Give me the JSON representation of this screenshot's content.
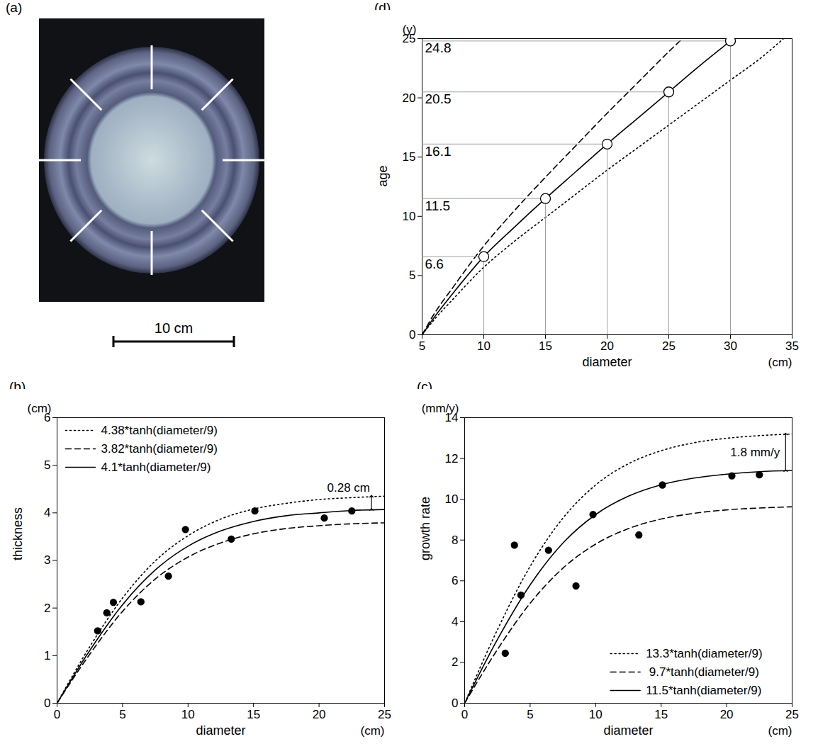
{
  "chart_data": [
    {
      "panel": "(a)",
      "type": "image",
      "scale_bar": "10 cm"
    },
    {
      "panel": "(b)",
      "type": "line",
      "x_label": "diameter",
      "x_unit": "(cm)",
      "y_label": "thickness",
      "y_unit": "(cm)",
      "xlim": [
        0,
        25
      ],
      "xticks": [
        0,
        5,
        10,
        15,
        20,
        25
      ],
      "ylim": [
        0,
        6
      ],
      "yticks": [
        0,
        1,
        2,
        3,
        4,
        5,
        6
      ],
      "legend": "upper left",
      "series": [
        {
          "name": "4.38*tanh(diameter/9)",
          "color": "#000000",
          "line_style": "dotted",
          "x": [
            0,
            2.5,
            5,
            7.5,
            10,
            12.5,
            15,
            17.5,
            20,
            22.5,
            25
          ],
          "values": [
            0,
            1.19,
            2.21,
            2.99,
            3.52,
            3.87,
            4.08,
            4.2,
            4.28,
            4.32,
            4.35
          ]
        },
        {
          "name": "3.82*tanh(diameter/9)",
          "color": "#000000",
          "line_style": "dashed",
          "x": [
            0,
            2.5,
            5,
            7.5,
            10,
            12.5,
            15,
            17.5,
            20,
            22.5,
            25
          ],
          "values": [
            0,
            1.03,
            1.93,
            2.61,
            3.07,
            3.37,
            3.56,
            3.67,
            3.73,
            3.77,
            3.79
          ]
        },
        {
          "name": "4.1*tanh(diameter/9)",
          "color": "#000000",
          "line_style": "solid",
          "x": [
            0,
            2.5,
            5,
            7.5,
            10,
            12.5,
            15,
            17.5,
            20,
            22.5,
            25
          ],
          "values": [
            0,
            1.11,
            2.07,
            2.8,
            3.3,
            3.62,
            3.82,
            3.94,
            4,
            4.05,
            4.07
          ]
        }
      ],
      "points": {
        "type": "scatter",
        "marker": "circle",
        "color": "#000000",
        "x": [
          3.1,
          3.8,
          4.3,
          6.4,
          8.5,
          9.8,
          13.3,
          15.1,
          20.4,
          22.5
        ],
        "values": [
          1.52,
          1.9,
          2.12,
          2.13,
          2.67,
          3.65,
          3.45,
          4.04,
          3.89,
          4.04
        ]
      },
      "annotations": [
        {
          "text": "0.28 cm",
          "x": 24,
          "y_from": 4.07,
          "y_to": 4.35
        }
      ]
    },
    {
      "panel": "(c)",
      "type": "line",
      "x_label": "diameter",
      "x_unit": "(cm)",
      "y_label": "growth rate",
      "y_unit": "(mm/y)",
      "xlim": [
        0,
        25
      ],
      "xticks": [
        0,
        5,
        10,
        15,
        20,
        25
      ],
      "ylim": [
        0,
        14
      ],
      "yticks": [
        0,
        2,
        4,
        6,
        8,
        10,
        12,
        14
      ],
      "legend": "lower right",
      "series": [
        {
          "name": "13.3*tanh(diameter/9)",
          "color": "#000000",
          "line_style": "dotted",
          "x": [
            0,
            2.5,
            5,
            7.5,
            10,
            12.5,
            15,
            17.5,
            20,
            22.5,
            25
          ],
          "values": [
            0,
            3.6,
            6.71,
            9.07,
            10.7,
            11.74,
            12.38,
            12.77,
            12.99,
            13.12,
            13.2
          ]
        },
        {
          "name": " 9.7*tanh(diameter/9)",
          "color": "#000000",
          "line_style": "dashed",
          "x": [
            0,
            2.5,
            5,
            7.5,
            10,
            12.5,
            15,
            17.5,
            20,
            22.5,
            25
          ],
          "values": [
            0,
            2.63,
            4.9,
            6.62,
            7.8,
            8.56,
            9.03,
            9.31,
            9.48,
            9.57,
            9.63
          ]
        },
        {
          "name": "11.5*tanh(diameter/9)",
          "color": "#000000",
          "line_style": "solid",
          "x": [
            0,
            2.5,
            5,
            7.5,
            10,
            12.5,
            15,
            17.5,
            20,
            22.5,
            25
          ],
          "values": [
            0,
            3.12,
            5.8,
            7.85,
            9.25,
            10.15,
            10.71,
            11.04,
            11.23,
            11.35,
            11.41
          ]
        }
      ],
      "points": {
        "type": "scatter",
        "marker": "circle",
        "color": "#000000",
        "x": [
          3.1,
          3.8,
          4.3,
          6.4,
          8.5,
          9.8,
          13.3,
          15.1,
          20.4,
          22.5
        ],
        "values": [
          2.45,
          7.75,
          5.3,
          7.5,
          5.75,
          9.25,
          8.25,
          10.7,
          11.15,
          11.2
        ]
      },
      "annotations": [
        {
          "text": "1.8 mm/y",
          "x": 24.5,
          "y_from": 11.4,
          "y_to": 13.2
        }
      ]
    },
    {
      "panel": "(d)",
      "type": "line",
      "x_label": "diameter",
      "x_unit": "(cm)",
      "y_label": "age",
      "y_unit": "(y)",
      "xlim": [
        5,
        35
      ],
      "xticks": [
        5,
        10,
        15,
        20,
        25,
        30,
        35
      ],
      "ylim": [
        0,
        25
      ],
      "yticks": [
        0,
        5,
        10,
        15,
        20,
        25
      ],
      "series": [
        {
          "color": "#000000",
          "line_style": "dashed",
          "x": [
            5,
            6,
            7.5,
            10,
            12.5,
            15,
            17.5,
            20,
            22.5,
            25,
            26.1
          ],
          "values": [
            0,
            1.8,
            4,
            7.5,
            10.5,
            13.3,
            16,
            18.7,
            21.3,
            23.9,
            25
          ]
        },
        {
          "color": "#000000",
          "line_style": "solid",
          "x": [
            5,
            6,
            7.5,
            10,
            12.5,
            15,
            17.5,
            20,
            22.5,
            25,
            27.5,
            30
          ],
          "values": [
            0,
            1.5,
            3.5,
            6.6,
            9.1,
            11.5,
            13.8,
            16.1,
            18.3,
            20.5,
            22.7,
            24.8
          ]
        },
        {
          "color": "#000000",
          "line_style": "dotted",
          "x": [
            5,
            6,
            7.5,
            10,
            12.5,
            15,
            17.5,
            20,
            22.5,
            25,
            27.5,
            30,
            32.5,
            34.3
          ],
          "values": [
            0,
            1.3,
            3,
            5.7,
            7.9,
            9.9,
            11.9,
            13.9,
            15.8,
            17.7,
            19.6,
            21.5,
            23.4,
            25
          ]
        }
      ],
      "points": {
        "type": "scatter",
        "marker": "open_circle",
        "color": "#000000",
        "data_labels": true,
        "x": [
          10,
          15,
          20,
          25,
          30
        ],
        "values": [
          6.6,
          11.5,
          16.1,
          20.5,
          24.8
        ]
      }
    }
  ]
}
